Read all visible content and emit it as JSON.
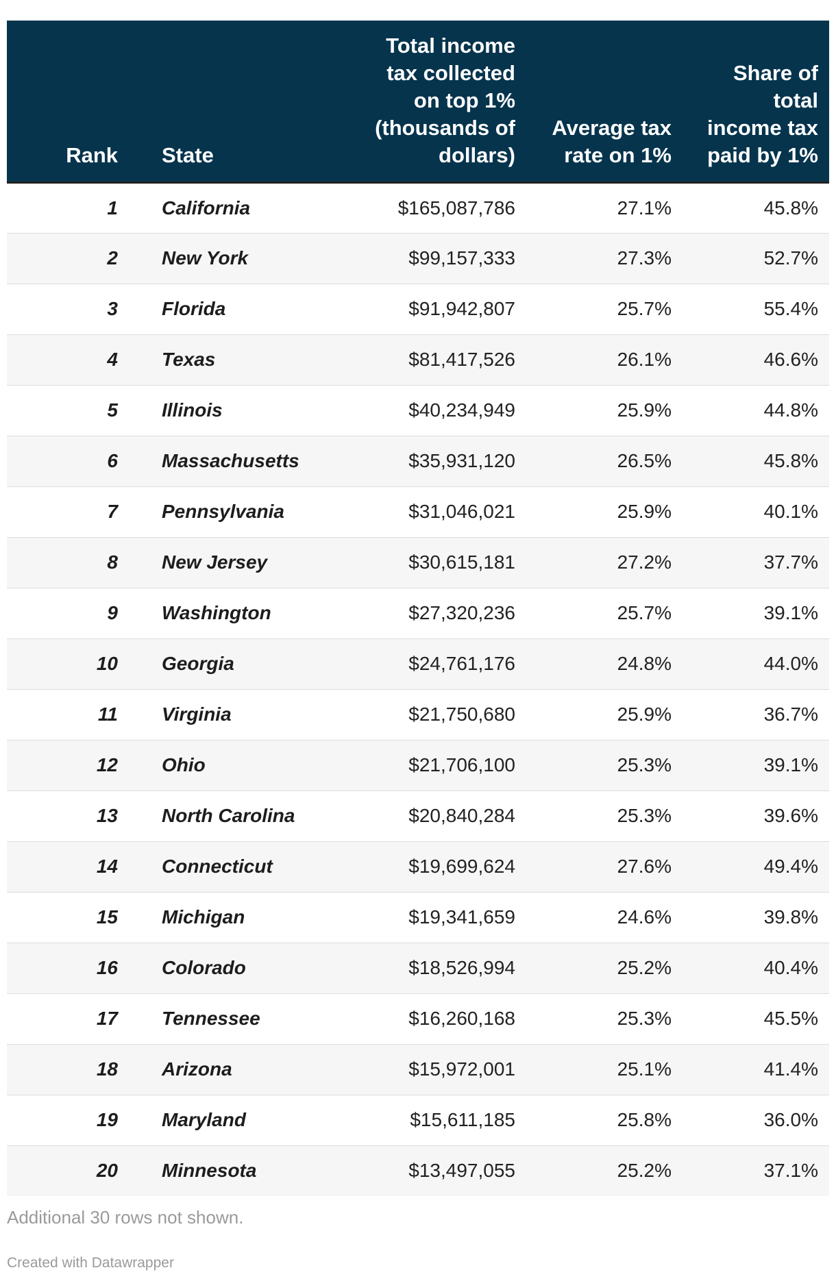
{
  "chart_data": {
    "type": "table",
    "columns": [
      "Rank",
      "State",
      "Total income tax collected on top 1% (thousands of dollars)",
      "Average tax rate on 1%",
      "Share of total income tax paid by 1%"
    ],
    "rows": [
      [
        "1",
        "California",
        "$165,087,786",
        "27.1%",
        "45.8%"
      ],
      [
        "2",
        "New York",
        "$99,157,333",
        "27.3%",
        "52.7%"
      ],
      [
        "3",
        "Florida",
        "$91,942,807",
        "25.7%",
        "55.4%"
      ],
      [
        "4",
        "Texas",
        "$81,417,526",
        "26.1%",
        "46.6%"
      ],
      [
        "5",
        "Illinois",
        "$40,234,949",
        "25.9%",
        "44.8%"
      ],
      [
        "6",
        "Massachusetts",
        "$35,931,120",
        "26.5%",
        "45.8%"
      ],
      [
        "7",
        "Pennsylvania",
        "$31,046,021",
        "25.9%",
        "40.1%"
      ],
      [
        "8",
        "New Jersey",
        "$30,615,181",
        "27.2%",
        "37.7%"
      ],
      [
        "9",
        "Washington",
        "$27,320,236",
        "25.7%",
        "39.1%"
      ],
      [
        "10",
        "Georgia",
        "$24,761,176",
        "24.8%",
        "44.0%"
      ],
      [
        "11",
        "Virginia",
        "$21,750,680",
        "25.9%",
        "36.7%"
      ],
      [
        "12",
        "Ohio",
        "$21,706,100",
        "25.3%",
        "39.1%"
      ],
      [
        "13",
        "North Carolina",
        "$20,840,284",
        "25.3%",
        "39.6%"
      ],
      [
        "14",
        "Connecticut",
        "$19,699,624",
        "27.6%",
        "49.4%"
      ],
      [
        "15",
        "Michigan",
        "$19,341,659",
        "24.6%",
        "39.8%"
      ],
      [
        "16",
        "Colorado",
        "$18,526,994",
        "25.2%",
        "40.4%"
      ],
      [
        "17",
        "Tennessee",
        "$16,260,168",
        "25.3%",
        "45.5%"
      ],
      [
        "18",
        "Arizona",
        "$15,972,001",
        "25.1%",
        "41.4%"
      ],
      [
        "19",
        "Maryland",
        "$15,611,185",
        "25.8%",
        "36.0%"
      ],
      [
        "20",
        "Minnesota",
        "$13,497,055",
        "25.2%",
        "37.1%"
      ]
    ],
    "note": "Additional 30 rows not shown.",
    "credit": "Created with Datawrapper"
  },
  "colors": {
    "header_bg": "#06344d",
    "header_text": "#ffffff",
    "stripe": "#f6f6f6",
    "muted_text": "#9a9a9a"
  }
}
